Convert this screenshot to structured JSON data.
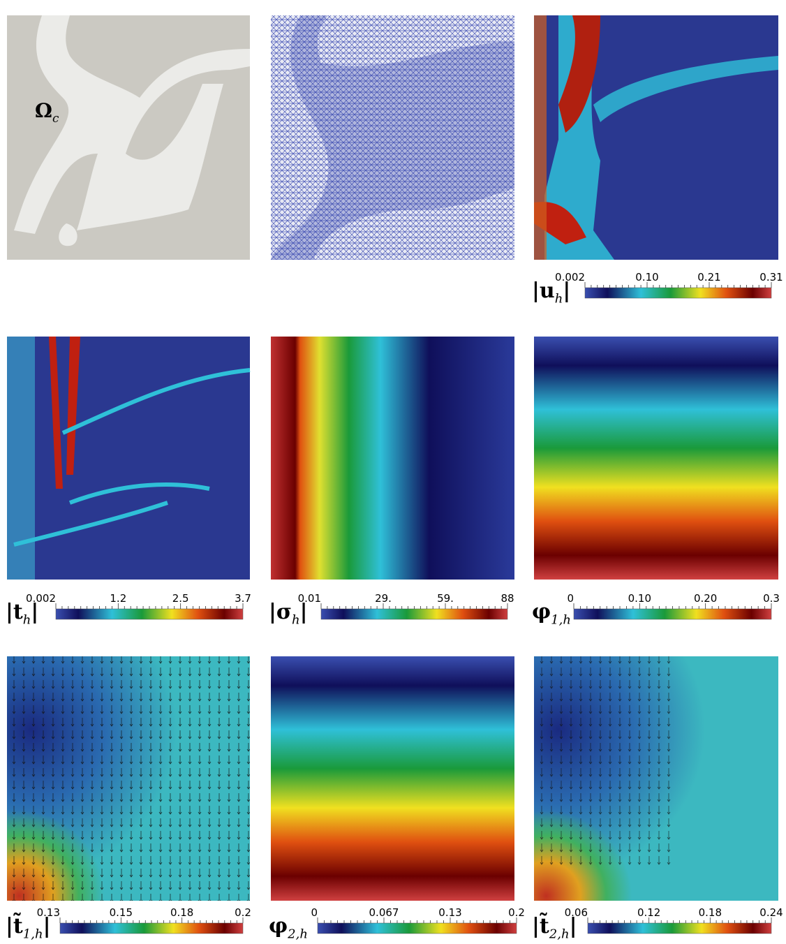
{
  "panels": [
    {
      "label": {
        "main": "Ω",
        "sub": "c"
      }
    },
    {},
    {
      "colorbar": {
        "label": {
          "main": "|u",
          "sub": "h",
          "close": "|"
        },
        "ticks": [
          "0.002",
          "0.10",
          "0.21",
          "0.31"
        ]
      }
    },
    {
      "colorbar": {
        "label": {
          "main": "|t",
          "sub": "h",
          "close": "|"
        },
        "ticks": [
          "0.002",
          "1.2",
          "2.5",
          "3.7"
        ]
      }
    },
    {
      "colorbar": {
        "label": {
          "main": "|σ",
          "sub": "h",
          "close": "|"
        },
        "ticks": [
          "0.01",
          "29.",
          "59.",
          "88"
        ]
      }
    },
    {
      "colorbar": {
        "label": {
          "main": "φ",
          "sub": "1,h"
        },
        "ticks": [
          "0",
          "0.10",
          "0.20",
          "0.3"
        ]
      }
    },
    {
      "colorbar": {
        "label": {
          "main": "|t̃",
          "sub": "1,h",
          "close": "|"
        },
        "ticks": [
          "0.13",
          "0.15",
          "0.18",
          "0.2"
        ]
      }
    },
    {
      "colorbar": {
        "label": {
          "main": "φ",
          "sub": "2,h"
        },
        "ticks": [
          "0",
          "0.067",
          "0.13",
          "0.2"
        ]
      }
    },
    {
      "colorbar": {
        "label": {
          "main": "|t̃",
          "sub": "2,h",
          "close": "|"
        },
        "ticks": [
          "0.06",
          "0.12",
          "0.18",
          "0.24"
        ]
      }
    }
  ]
}
